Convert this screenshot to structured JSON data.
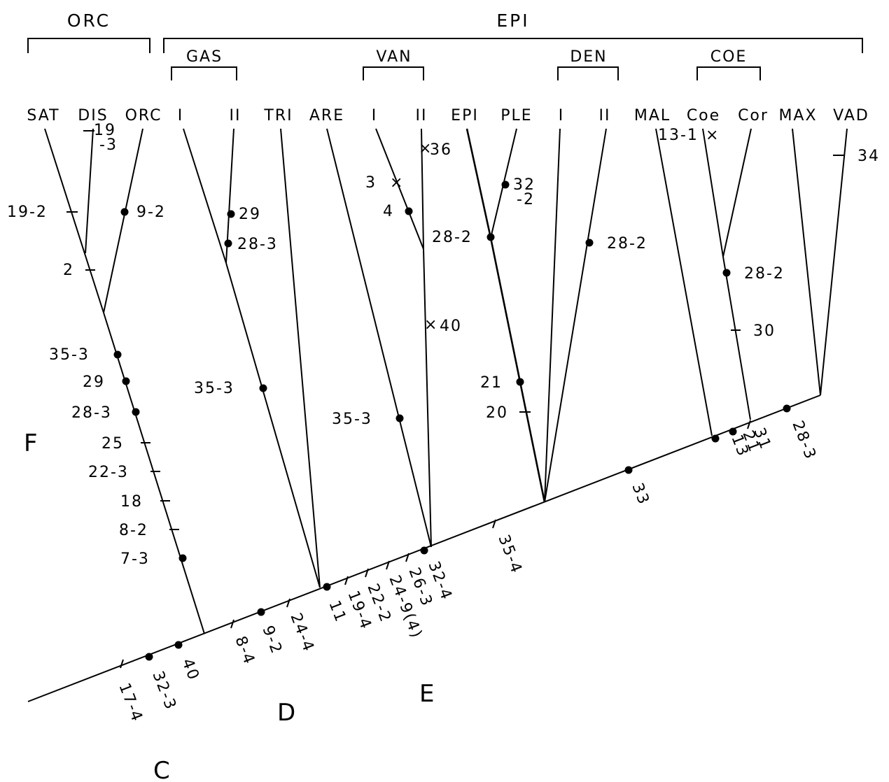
{
  "groups": {
    "orc": "ORC",
    "epi": "EPI"
  },
  "subgroups": {
    "gas": "GAS",
    "van": "VAN",
    "den": "DEN",
    "coe": "COE"
  },
  "taxa": {
    "sat": "SAT",
    "dis": "DIS",
    "orc": "ORC",
    "gas_1": "I",
    "gas_2": "II",
    "tri": "TRI",
    "are": "ARE",
    "van_1": "I",
    "van_2": "II",
    "epi": "EPI",
    "ple": "PLE",
    "den_1": "I",
    "den_2": "II",
    "mal": "MAL",
    "coe": "Coe",
    "cor": "Cor",
    "max": "MAX",
    "vad": "VAD"
  },
  "nodes": {
    "c": "C",
    "d": "D",
    "e": "E",
    "f": "F"
  },
  "characters": {
    "dis_19": "19",
    "dis_3": "-3",
    "orc_19_2": "19-2",
    "orc_9_2": "9-2",
    "orc_2": "2",
    "f_35_3": "35-3",
    "f_29": "29",
    "f_28_3": "28-3",
    "f_25": "25",
    "f_22_3": "22-3",
    "f_18": "18",
    "f_8_2": "8-2",
    "f_7_3": "7-3",
    "gas_29": "29",
    "gas_28_3": "28-3",
    "gas_35_3": "35-3",
    "van_36": "36",
    "van_3": "3",
    "van_4": "4",
    "van_40": "40",
    "are_35_3": "35-3",
    "ple_32": "32",
    "ple_2": "-2",
    "epi_28_2": "28-2",
    "epi_21": "21",
    "epi_20": "20",
    "den_28_2": "28-2",
    "mal_13_1": "13-1",
    "coe_28_2": "28-2",
    "coe_30": "30",
    "vad_34": "34",
    "c_17_4": "17-4",
    "c_32_3": "32-3",
    "c_40": "40",
    "d_8_4": "8-4",
    "d_9_2": "9-2",
    "d_24_4": "24-4",
    "e_11": "11",
    "e_19_4": "19-4",
    "e_22_2": "22-2",
    "e_24_9": "24-9(4)",
    "e_26_3": "26-3",
    "e_32_4": "32-4",
    "epi_35_4": "35-4",
    "epi_33": "33",
    "coe_13": "13",
    "coe_21": "21",
    "coe_31": "31",
    "max_28_3": "28-3"
  }
}
